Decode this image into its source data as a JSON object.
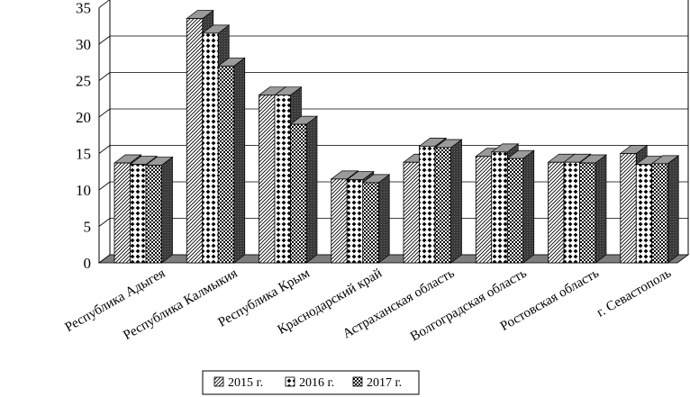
{
  "chart_data": {
    "type": "bar",
    "title": "",
    "xlabel": "",
    "ylabel": "",
    "ylim": [
      0,
      35
    ],
    "yticks": [
      0,
      5,
      10,
      15,
      20,
      25,
      30,
      35
    ],
    "grid": true,
    "legend_position": "bottom",
    "categories": [
      "Республика Адыгея",
      "Республика Калмыкия",
      "Республика Крым",
      "Краснодарский край",
      "Астраханская область",
      "Волгоградская область",
      "Ростовская область",
      "г. Севастополь"
    ],
    "series": [
      {
        "name": "2015 г.",
        "values": [
          13.7,
          33.5,
          23.0,
          11.5,
          13.8,
          14.6,
          13.8,
          15.0
        ]
      },
      {
        "name": "2016 г.",
        "values": [
          13.5,
          31.5,
          23.0,
          11.4,
          16.0,
          15.2,
          13.8,
          13.5
        ]
      },
      {
        "name": "2017 г.",
        "values": [
          13.4,
          27.0,
          19.0,
          11.0,
          15.8,
          14.3,
          13.7,
          13.6
        ]
      }
    ],
    "colors": {
      "front": "#ffffff",
      "side": "#3a3a3a",
      "top": "#9a9a9a",
      "floor": "#7d7d7d",
      "grid": "#000000"
    }
  }
}
